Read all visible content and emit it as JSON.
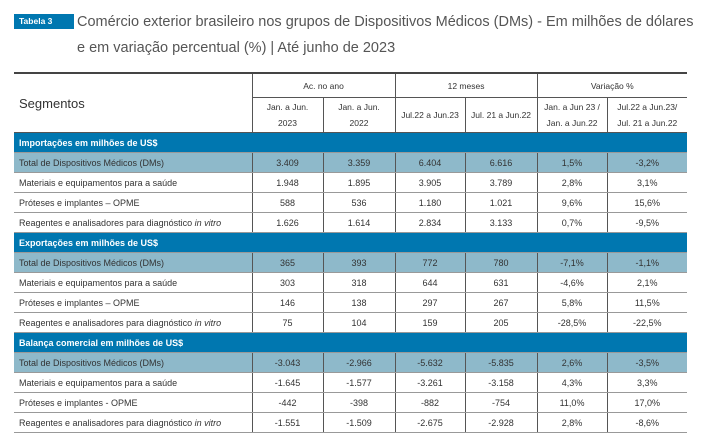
{
  "title": {
    "badge": "Tabela 3",
    "text": "Comércio exterior brasileiro nos grupos de Dispositivos Médicos (DMs) - Em milhões de dólares e em variação percentual (%) | Até junho de 2023"
  },
  "colors": {
    "section": "#0077b0",
    "total_row": "#8eb9ca"
  },
  "header": {
    "segment": "Segmentos",
    "groups": [
      "Ac. no ano",
      "12 meses",
      "Variação %"
    ],
    "columns": [
      [
        "Jan. a Jun.",
        "2023"
      ],
      [
        "Jan. a Jun.",
        "2022"
      ],
      [
        "Jul.22 a Jun.23"
      ],
      [
        "Jul. 21 a Jun.22"
      ],
      [
        "Jan. a Jun 23 /",
        "Jan. a Jun.22"
      ],
      [
        "Jul.22 a Jun.23/",
        "Jul. 21 a Jun.22"
      ]
    ]
  },
  "sections": [
    {
      "title": "Importações em milhões de US$",
      "rows": [
        {
          "label": "Total de Dispositivos Médicos (DMs)",
          "italic": "",
          "values": [
            "3.409",
            "3.359",
            "6.404",
            "6.616",
            "1,5%",
            "-3,2%"
          ]
        },
        {
          "label": "Materiais e equipamentos para a saúde",
          "italic": "",
          "values": [
            "1.948",
            "1.895",
            "3.905",
            "3.789",
            "2,8%",
            "3,1%"
          ]
        },
        {
          "label": "Próteses e implantes – OPME",
          "italic": "",
          "values": [
            "588",
            "536",
            "1.180",
            "1.021",
            "9,6%",
            "15,6%"
          ]
        },
        {
          "label": "Reagentes e analisadores para diagnóstico ",
          "italic": "in vitro",
          "values": [
            "1.626",
            "1.614",
            "2.834",
            "3.133",
            "0,7%",
            "-9,5%"
          ]
        }
      ]
    },
    {
      "title": "Exportações em milhões de US$",
      "rows": [
        {
          "label": "Total de Dispositivos Médicos (DMs)",
          "italic": "",
          "values": [
            "365",
            "393",
            "772",
            "780",
            "-7,1%",
            "-1,1%"
          ]
        },
        {
          "label": "Materiais e equipamentos para a saúde",
          "italic": "",
          "values": [
            "303",
            "318",
            "644",
            "631",
            "-4,6%",
            "2,1%"
          ]
        },
        {
          "label": "Próteses e implantes – OPME",
          "italic": "",
          "values": [
            "146",
            "138",
            "297",
            "267",
            "5,8%",
            "11,5%"
          ]
        },
        {
          "label": "Reagentes e analisadores para diagnóstico ",
          "italic": "in vitro",
          "values": [
            "75",
            "104",
            "159",
            "205",
            "-28,5%",
            "-22,5%"
          ]
        }
      ]
    },
    {
      "title": "Balança comercial em milhões de US$",
      "rows": [
        {
          "label": "Total de Dispositivos Médicos (DMs)",
          "italic": "",
          "values": [
            "-3.043",
            "-2.966",
            "-5.632",
            "-5.835",
            "2,6%",
            "-3,5%"
          ]
        },
        {
          "label": "Materiais e equipamentos para a saúde",
          "italic": "",
          "values": [
            "-1.645",
            "-1.577",
            "-3.261",
            "-3.158",
            "4,3%",
            "3,3%"
          ]
        },
        {
          "label": "Próteses e implantes  - OPME",
          "italic": "",
          "values": [
            "-442",
            "-398",
            "-882",
            "-754",
            "11,0%",
            "17,0%"
          ]
        },
        {
          "label": "Reagentes e analisadores para diagnóstico ",
          "italic": "in vitro",
          "values": [
            "-1.551",
            "-1.509",
            "-2.675",
            "-2.928",
            "2,8%",
            "-8,6%"
          ]
        }
      ]
    }
  ]
}
